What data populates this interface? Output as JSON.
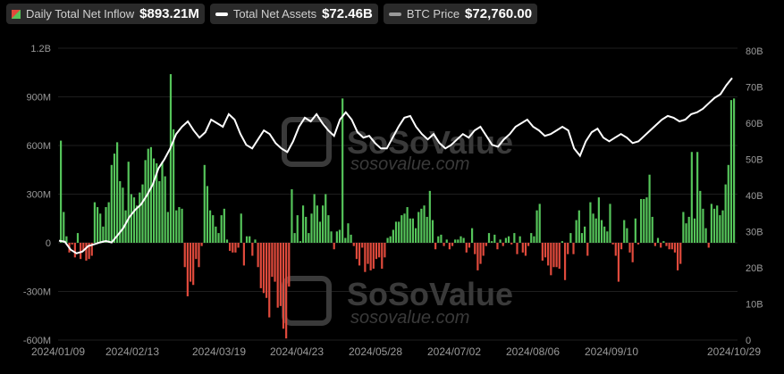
{
  "legend": [
    {
      "label": "Daily Total Net Inflow",
      "value": "$893.21M",
      "icon": "inflow-swatch"
    },
    {
      "label": "Total Net Assets",
      "value": "$72.46B",
      "color": "#ffffff"
    },
    {
      "label": "BTC Price",
      "value": "$72,760.00",
      "color": "#9a9a9a"
    }
  ],
  "watermark": {
    "brand": "SoSoValue",
    "site": "sosovalue.com"
  },
  "chart_data": {
    "type": "bar",
    "title": "",
    "colors": {
      "positive": "#55c45a",
      "negative": "#e04a3c",
      "assets_line": "#ffffff"
    },
    "grid": true,
    "y_left": {
      "ticks": [
        "1.2B",
        "900M",
        "600M",
        "300M",
        "0",
        "-300M",
        "-600M"
      ],
      "range_millions": [
        -600,
        1200
      ]
    },
    "y_right": {
      "ticks": [
        "80B",
        "70B",
        "60B",
        "50B",
        "40B",
        "30B",
        "20B",
        "10B",
        "0"
      ],
      "range_billions": [
        0,
        80
      ]
    },
    "x_ticks": [
      "2024/01/09",
      "2024/02/13",
      "2024/03/19",
      "2024/04/23",
      "2024/05/28",
      "2024/07/02",
      "2024/08/06",
      "2024/09/10",
      "2024/10/29"
    ],
    "bar_series_name": "Daily Total Net Inflow",
    "inflow_millions": [
      630,
      190,
      40,
      -60,
      -10,
      -90,
      60,
      -100,
      -50,
      -110,
      -100,
      -80,
      250,
      220,
      180,
      100,
      220,
      250,
      480,
      550,
      620,
      380,
      340,
      200,
      500,
      300,
      280,
      230,
      310,
      360,
      510,
      580,
      590,
      520,
      490,
      380,
      500,
      410,
      190,
      1040,
      700,
      200,
      220,
      210,
      -150,
      -330,
      -240,
      -260,
      -100,
      -150,
      -20,
      480,
      350,
      200,
      170,
      100,
      60,
      170,
      210,
      20,
      -50,
      -60,
      -60,
      -30,
      180,
      -140,
      40,
      40,
      -80,
      20,
      -150,
      -280,
      -310,
      -340,
      -460,
      -210,
      -240,
      -400,
      -390,
      -530,
      -590,
      -270,
      330,
      60,
      170,
      10,
      230,
      160,
      60,
      180,
      300,
      230,
      130,
      230,
      300,
      170,
      70,
      -40,
      70,
      80,
      890,
      30,
      120,
      50,
      -20,
      -100,
      -140,
      -30,
      -180,
      -130,
      -170,
      -160,
      -100,
      -90,
      -160,
      -90,
      30,
      40,
      80,
      130,
      130,
      170,
      180,
      220,
      150,
      150,
      90,
      190,
      210,
      230,
      160,
      320,
      140,
      -40,
      40,
      50,
      -20,
      20,
      -40,
      -20,
      20,
      20,
      40,
      30,
      -60,
      -30,
      90,
      -70,
      -170,
      -130,
      -80,
      -20,
      60,
      10,
      50,
      -40,
      20,
      -20,
      30,
      40,
      -10,
      60,
      -70,
      40,
      -60,
      -80,
      -20,
      60,
      40,
      200,
      240,
      -110,
      -90,
      -140,
      -200,
      -150,
      -150,
      -160,
      10,
      -230,
      -70,
      60,
      -70,
      140,
      200,
      60,
      100,
      -80,
      250,
      180,
      150,
      280,
      140,
      100,
      70,
      240,
      -10,
      -80,
      -240,
      -40,
      140,
      90,
      -60,
      -120,
      150,
      -10,
      270,
      270,
      280,
      420,
      160,
      -20,
      30,
      -30,
      10,
      -20,
      -40,
      -40,
      -60,
      -170,
      -130,
      190,
      120,
      160,
      560,
      150,
      560,
      320,
      210,
      90,
      -30,
      240,
      210,
      230,
      170,
      200,
      360,
      480,
      880,
      890
    ],
    "line_series_name": "Total Net Assets",
    "assets_billions": [
      27.5,
      27.2,
      25.0,
      24.0,
      24.5,
      26.0,
      26.5,
      27.0,
      27.4,
      27.0,
      29.0,
      31.0,
      34.0,
      36.0,
      37.5,
      40.0,
      43.0,
      47.5,
      50.0,
      53.0,
      57.0,
      59.0,
      60.5,
      58.0,
      56.0,
      57.5,
      61.0,
      60.0,
      59.0,
      62.5,
      61.0,
      57.0,
      54.0,
      53.0,
      55.5,
      58.0,
      57.0,
      54.5,
      53.0,
      52.0,
      55.0,
      59.0,
      61.5,
      60.5,
      62.5,
      60.0,
      58.0,
      56.5,
      61.0,
      63.0,
      61.0,
      57.5,
      56.0,
      56.5,
      54.5,
      53.0,
      53.0,
      56.0,
      59.0,
      61.5,
      62.0,
      59.0,
      57.0,
      55.5,
      57.0,
      54.5,
      53.0,
      54.0,
      55.5,
      57.0,
      56.0,
      58.0,
      59.0,
      56.5,
      54.0,
      53.5,
      55.5,
      57.0,
      59.0,
      60.0,
      61.0,
      59.0,
      58.0,
      56.5,
      57.0,
      58.0,
      59.0,
      58.0,
      53.0,
      51.0,
      55.0,
      57.5,
      58.5,
      56.0,
      55.0,
      56.0,
      57.0,
      56.0,
      54.5,
      55.0,
      56.5,
      58.0,
      59.5,
      61.0,
      62.0,
      61.5,
      60.5,
      61.0,
      62.5,
      63.0,
      64.0,
      65.5,
      67.0,
      68.0,
      70.5,
      72.5
    ],
    "assets_x_ticks_anchor": "2024/01/09 to 2024/10/29"
  }
}
